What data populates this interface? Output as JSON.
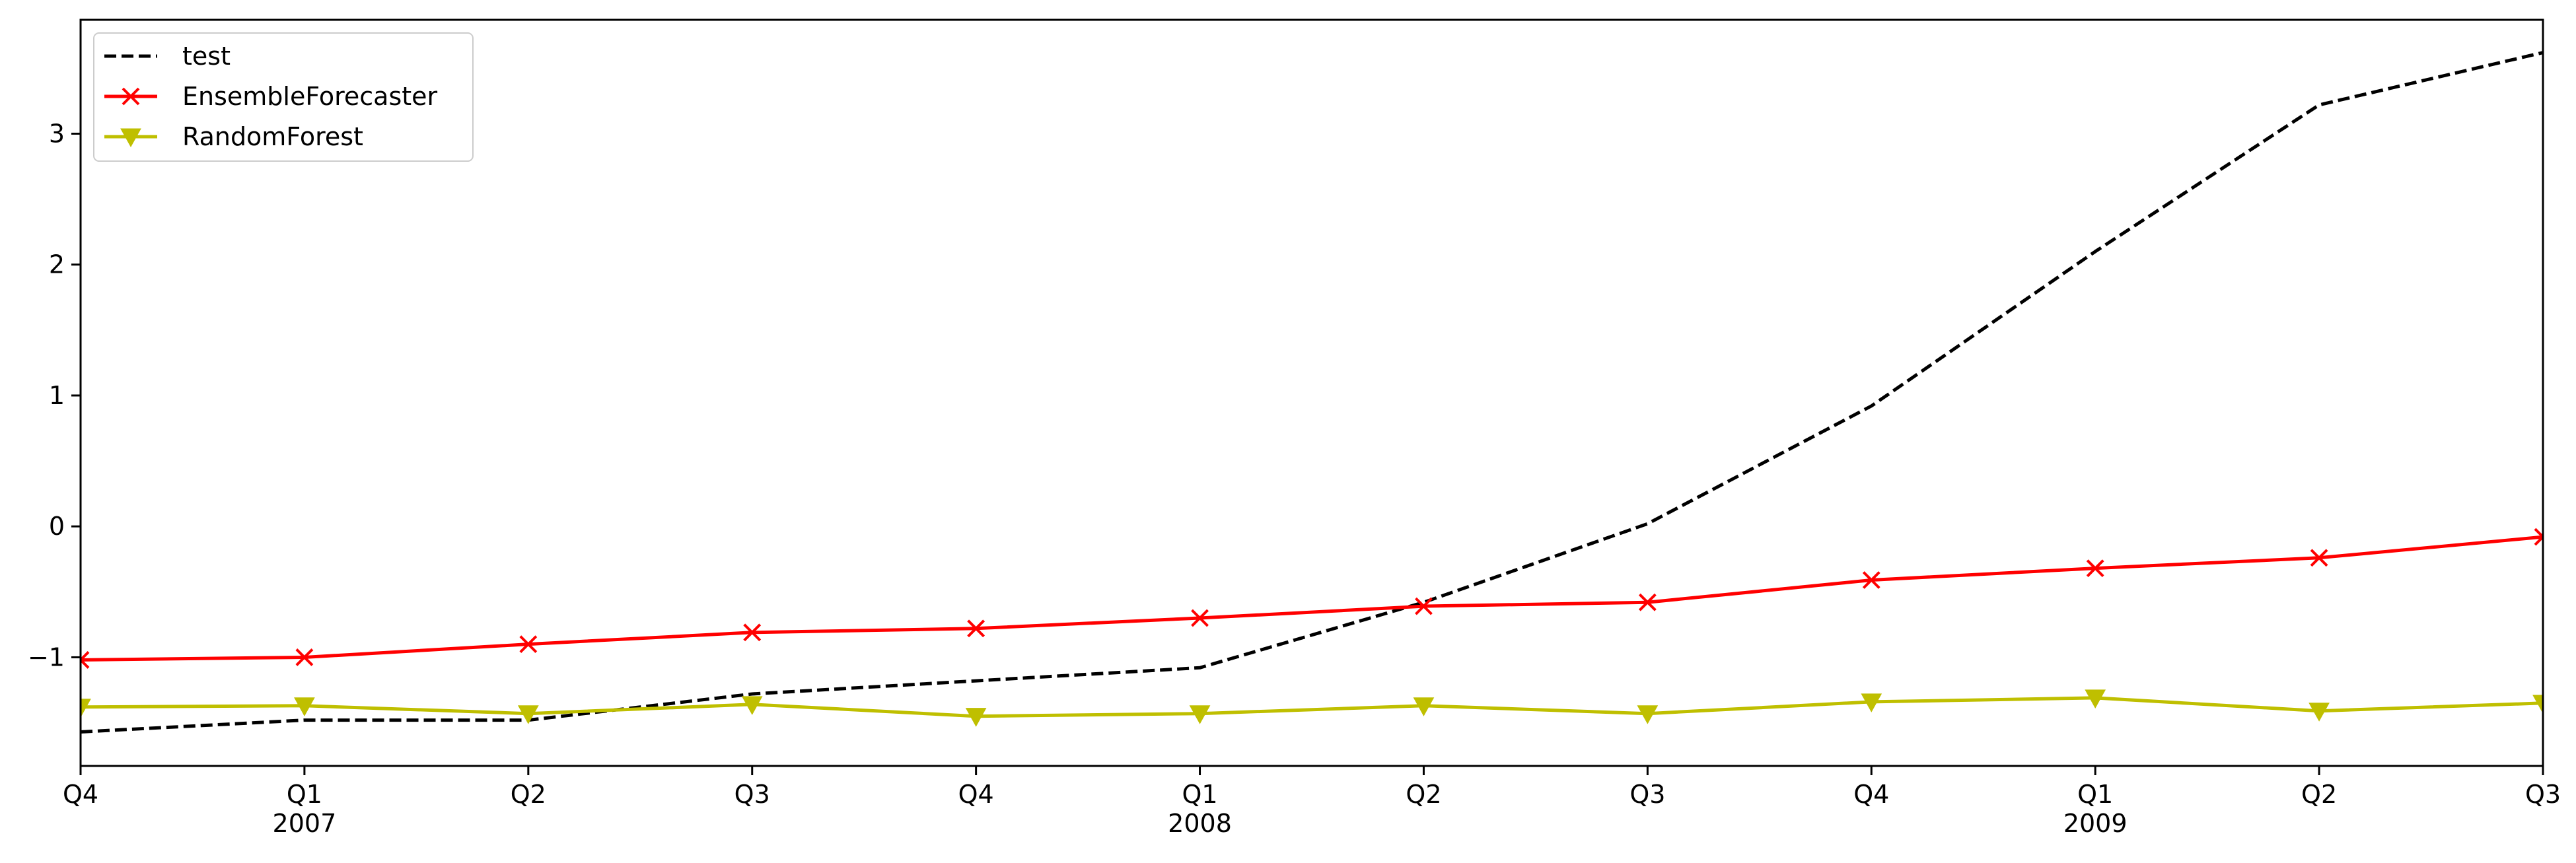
{
  "chart_data": {
    "type": "line",
    "title": "",
    "xlabel": "",
    "ylabel": "",
    "x": [
      "2006-Q4",
      "2007-Q1",
      "2007-Q2",
      "2007-Q3",
      "2007-Q4",
      "2008-Q1",
      "2008-Q2",
      "2008-Q3",
      "2008-Q4",
      "2009-Q1",
      "2009-Q2",
      "2009-Q3"
    ],
    "xtick_labels": [
      {
        "quarter": "Q4",
        "year": ""
      },
      {
        "quarter": "Q1",
        "year": "2007"
      },
      {
        "quarter": "Q2",
        "year": ""
      },
      {
        "quarter": "Q3",
        "year": ""
      },
      {
        "quarter": "Q4",
        "year": ""
      },
      {
        "quarter": "Q1",
        "year": "2008"
      },
      {
        "quarter": "Q2",
        "year": ""
      },
      {
        "quarter": "Q3",
        "year": ""
      },
      {
        "quarter": "Q4",
        "year": ""
      },
      {
        "quarter": "Q1",
        "year": "2009"
      },
      {
        "quarter": "Q2",
        "year": ""
      },
      {
        "quarter": "Q3",
        "year": ""
      }
    ],
    "yticks": [
      -1,
      0,
      1,
      2,
      3
    ],
    "ytick_labels": [
      "−1",
      "0",
      "1",
      "2",
      "3"
    ],
    "ylim": [
      -1.83,
      3.87
    ],
    "grid": false,
    "legend_position": "top-left",
    "series": [
      {
        "name": "test",
        "color": "#000000",
        "style": "dashed",
        "marker": "none",
        "values": [
          -1.57,
          -1.48,
          -1.48,
          -1.28,
          -1.18,
          -1.08,
          -0.58,
          0.02,
          0.92,
          2.1,
          3.22,
          3.62
        ]
      },
      {
        "name": "EnsembleForecaster",
        "color": "#ff0000",
        "style": "solid",
        "marker": "x",
        "values": [
          -1.02,
          -1.0,
          -0.9,
          -0.81,
          -0.78,
          -0.7,
          -0.61,
          -0.58,
          -0.41,
          -0.32,
          -0.24,
          -0.08
        ]
      },
      {
        "name": "RandomForest",
        "color": "#bfbf00",
        "style": "solid",
        "marker": "triangle-down",
        "values": [
          -1.38,
          -1.37,
          -1.43,
          -1.36,
          -1.45,
          -1.43,
          -1.37,
          -1.43,
          -1.34,
          -1.31,
          -1.41,
          -1.35
        ]
      }
    ]
  }
}
